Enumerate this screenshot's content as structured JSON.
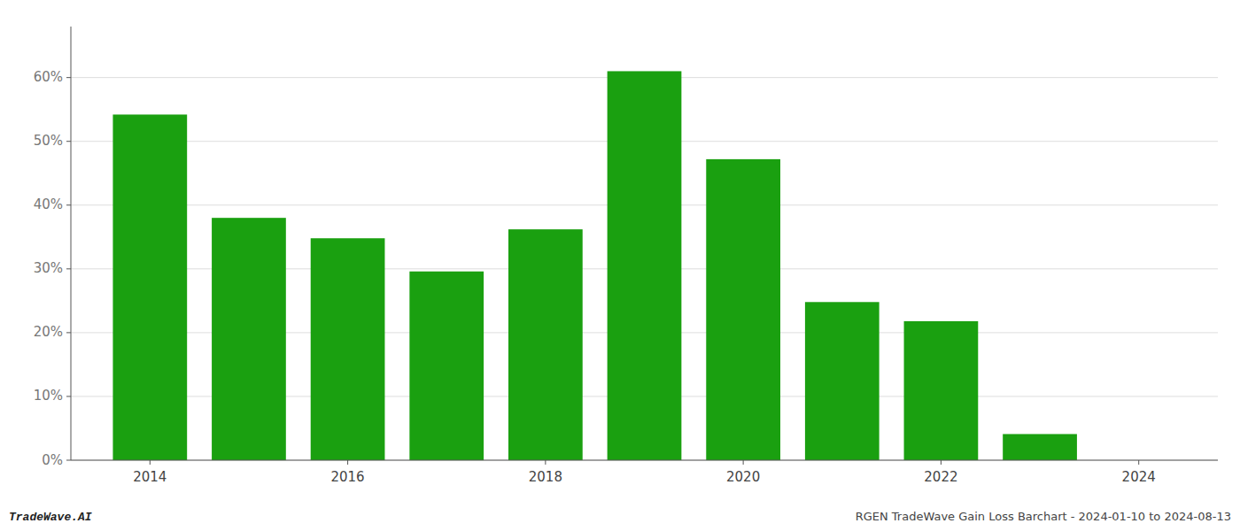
{
  "chart_data": {
    "type": "bar",
    "x": [
      2014,
      2015,
      2016,
      2017,
      2018,
      2019,
      2020,
      2021,
      2022,
      2023,
      2024
    ],
    "values": [
      54.2,
      38.0,
      34.8,
      29.6,
      36.2,
      61.0,
      47.2,
      24.8,
      21.8,
      4.1,
      0.0
    ],
    "color": "#1aa010",
    "xlim": [
      2013.2,
      2024.8
    ],
    "xticks": [
      2014,
      2016,
      2018,
      2020,
      2022,
      2024
    ],
    "ylim": [
      0,
      68
    ],
    "yticks": [
      {
        "value": 0,
        "label": "0%"
      },
      {
        "value": 10,
        "label": "10%"
      },
      {
        "value": 20,
        "label": "20%"
      },
      {
        "value": 30,
        "label": "30%"
      },
      {
        "value": 40,
        "label": "40%"
      },
      {
        "value": 50,
        "label": "50%"
      },
      {
        "value": 60,
        "label": "60%"
      }
    ],
    "grid": true,
    "annotations": [
      "TradeWave.AI",
      "RGEN TradeWave Gain Loss Barchart - 2024-01-10 to 2024-08-13"
    ]
  }
}
